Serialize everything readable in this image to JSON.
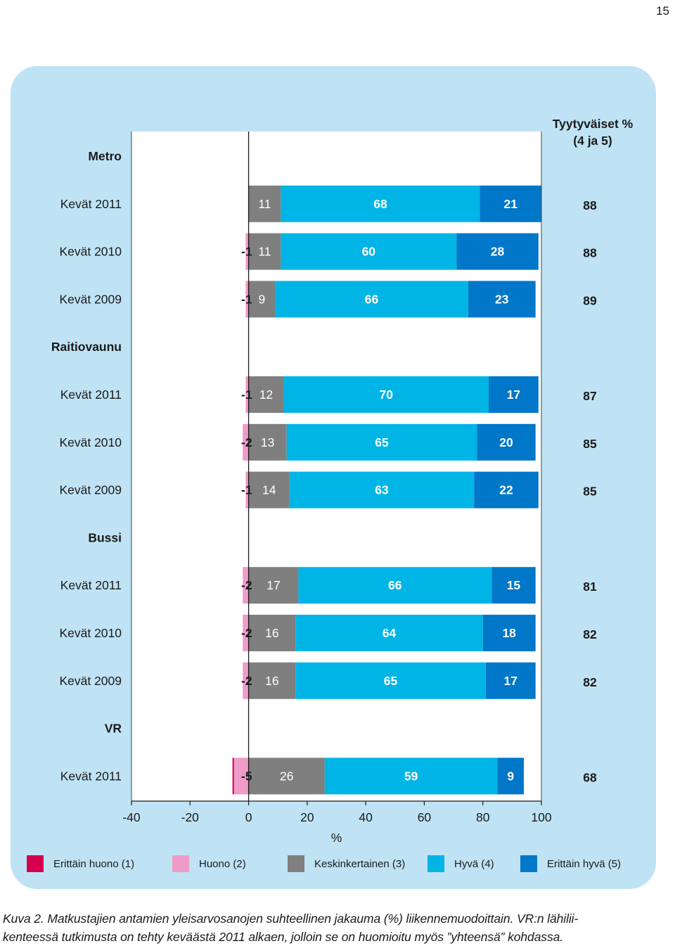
{
  "page_number": "15",
  "caption": {
    "line1": "Kuva 2. Matkustajien antamien yleisarvosanojen suhteellinen jakauma (%) liikennemuodoittain. VR:n lähilii-",
    "line2": "kenteessä tutkimusta on tehty keväästä 2011 alkaen, jolloin se on huomioitu myös ”yhteensä” kohdassa."
  },
  "colors": {
    "panel_background": "#bfe3f5",
    "erittain_huono": "#d4004f",
    "huono": "#ef9bc8",
    "keskinkertainen": "#7f7f7f",
    "hyva": "#00b5e5",
    "erittain_hyva": "#0077c8"
  },
  "chart_data": {
    "type": "bar",
    "orientation": "horizontal-stacked-diverging",
    "xlabel": "%",
    "xlim": [
      -40,
      100
    ],
    "x_ticks": [
      "-40",
      "-20",
      "0",
      "20",
      "40",
      "60",
      "80",
      "100"
    ],
    "right_column_header": [
      "Tyytyväiset %",
      "(4 ja 5)"
    ],
    "series": [
      {
        "name": "Erittäin huono (1)",
        "color": "#d4004f"
      },
      {
        "name": "Huono (2)",
        "color": "#ef9bc8"
      },
      {
        "name": "Keskinkertainen (3)",
        "color": "#7f7f7f"
      },
      {
        "name": "Hyvä (4)",
        "color": "#00b5e5"
      },
      {
        "name": "Erittäin hyvä (5)",
        "color": "#0077c8"
      }
    ],
    "groups": [
      {
        "name": "Metro",
        "rows": [
          {
            "label": "Kevät 2011",
            "values": [
              0,
              0,
              11,
              68,
              21
            ],
            "labels": [
              "",
              "",
              "11",
              "68",
              "21"
            ],
            "satisfied": "88"
          },
          {
            "label": "Kevät 2010",
            "values": [
              0,
              -1,
              11,
              60,
              28
            ],
            "labels": [
              "",
              "-1",
              "11",
              "60",
              "28"
            ],
            "satisfied": "88"
          },
          {
            "label": "Kevät 2009",
            "values": [
              0,
              -1,
              9,
              66,
              23
            ],
            "labels": [
              "",
              "-1",
              "9",
              "66",
              "23"
            ],
            "satisfied": "89"
          }
        ]
      },
      {
        "name": "Raitiovaunu",
        "rows": [
          {
            "label": "Kevät 2011",
            "values": [
              0,
              -1,
              12,
              70,
              17
            ],
            "labels": [
              "",
              "-1",
              "12",
              "70",
              "17"
            ],
            "satisfied": "87"
          },
          {
            "label": "Kevät 2010",
            "values": [
              0,
              -2,
              13,
              65,
              20
            ],
            "labels": [
              "",
              "-2",
              "13",
              "65",
              "20"
            ],
            "satisfied": "85"
          },
          {
            "label": "Kevät 2009",
            "values": [
              0,
              -1,
              14,
              63,
              22
            ],
            "labels": [
              "",
              "-1",
              "14",
              "63",
              "22"
            ],
            "satisfied": "85"
          }
        ]
      },
      {
        "name": "Bussi",
        "rows": [
          {
            "label": "Kevät 2011",
            "values": [
              0,
              -2,
              17,
              66,
              15
            ],
            "labels": [
              "",
              "-2",
              "17",
              "66",
              "15"
            ],
            "satisfied": "81"
          },
          {
            "label": "Kevät 2010",
            "values": [
              0,
              -2,
              16,
              64,
              18
            ],
            "labels": [
              "",
              "-2",
              "16",
              "64",
              "18"
            ],
            "satisfied": "82"
          },
          {
            "label": "Kevät 2009",
            "values": [
              0,
              -2,
              16,
              65,
              17
            ],
            "labels": [
              "",
              "-2",
              "16",
              "65",
              "17"
            ],
            "satisfied": "82"
          }
        ]
      },
      {
        "name": "VR",
        "rows": [
          {
            "label": "Kevät 2011",
            "values": [
              -0.5,
              -5,
              26,
              59,
              9
            ],
            "labels": [
              "",
              "-5",
              "26",
              "59",
              "9"
            ],
            "satisfied": "68"
          }
        ]
      }
    ]
  }
}
